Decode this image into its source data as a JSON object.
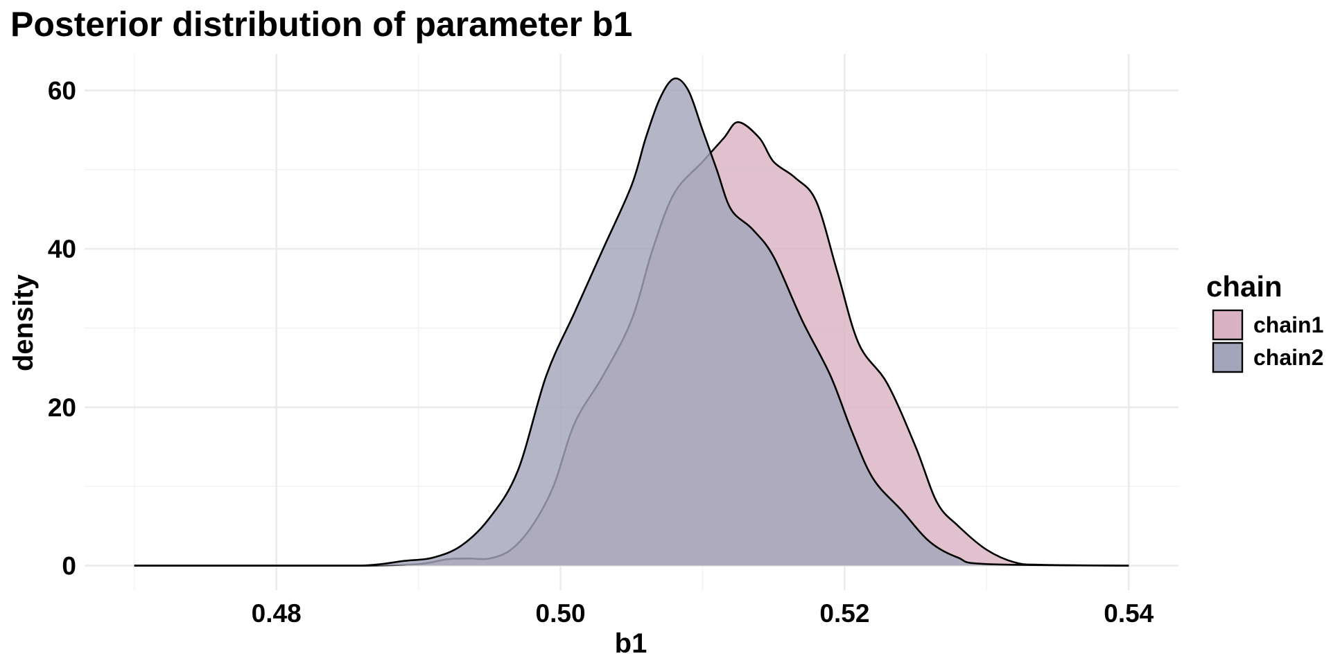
{
  "chart_data": {
    "type": "area",
    "title": "Posterior distribution of parameter b1",
    "xlabel": "b1",
    "ylabel": "density",
    "xlim": [
      0.4665,
      0.5435
    ],
    "ylim": [
      -3.1,
      64.6
    ],
    "x_ticks": [
      0.48,
      0.5,
      0.52,
      0.54
    ],
    "x_tick_labels": [
      "0.48",
      "0.50",
      "0.52",
      "0.54"
    ],
    "y_ticks": [
      0,
      20,
      40,
      60
    ],
    "y_tick_labels": [
      "0",
      "20",
      "40",
      "60"
    ],
    "grid": true,
    "legend": {
      "title": "chain",
      "position": "right"
    },
    "series": [
      {
        "name": "chain1",
        "color": "#d9b3c2",
        "points": [
          [
            0.47,
            0
          ],
          [
            0.48,
            0
          ],
          [
            0.486,
            0
          ],
          [
            0.49,
            0.2
          ],
          [
            0.492,
            0.8
          ],
          [
            0.4935,
            0.9
          ],
          [
            0.495,
            0.9
          ],
          [
            0.4965,
            2
          ],
          [
            0.498,
            5
          ],
          [
            0.4995,
            10
          ],
          [
            0.501,
            18
          ],
          [
            0.503,
            24
          ],
          [
            0.505,
            31
          ],
          [
            0.5065,
            40
          ],
          [
            0.508,
            47
          ],
          [
            0.51,
            51
          ],
          [
            0.5115,
            54
          ],
          [
            0.5125,
            56
          ],
          [
            0.514,
            54
          ],
          [
            0.515,
            51
          ],
          [
            0.5165,
            49
          ],
          [
            0.518,
            46
          ],
          [
            0.5195,
            37
          ],
          [
            0.521,
            28
          ],
          [
            0.523,
            23
          ],
          [
            0.525,
            15
          ],
          [
            0.5265,
            8
          ],
          [
            0.528,
            5
          ],
          [
            0.53,
            2
          ],
          [
            0.532,
            0.4
          ],
          [
            0.534,
            0.1
          ],
          [
            0.54,
            0
          ]
        ]
      },
      {
        "name": "chain2",
        "color": "#a3a6bb",
        "points": [
          [
            0.47,
            0
          ],
          [
            0.48,
            0
          ],
          [
            0.486,
            0
          ],
          [
            0.489,
            0.6
          ],
          [
            0.491,
            1.0
          ],
          [
            0.493,
            2.5
          ],
          [
            0.495,
            6
          ],
          [
            0.497,
            12
          ],
          [
            0.499,
            24
          ],
          [
            0.501,
            32
          ],
          [
            0.503,
            40
          ],
          [
            0.505,
            48
          ],
          [
            0.506,
            54
          ],
          [
            0.507,
            59
          ],
          [
            0.508,
            61.5
          ],
          [
            0.509,
            60
          ],
          [
            0.51,
            55
          ],
          [
            0.511,
            50
          ],
          [
            0.512,
            45
          ],
          [
            0.5135,
            42.5
          ],
          [
            0.515,
            39
          ],
          [
            0.517,
            31
          ],
          [
            0.519,
            24
          ],
          [
            0.5205,
            17
          ],
          [
            0.522,
            11
          ],
          [
            0.524,
            7
          ],
          [
            0.526,
            3
          ],
          [
            0.528,
            1
          ],
          [
            0.53,
            0.2
          ],
          [
            0.54,
            0
          ]
        ]
      }
    ]
  }
}
